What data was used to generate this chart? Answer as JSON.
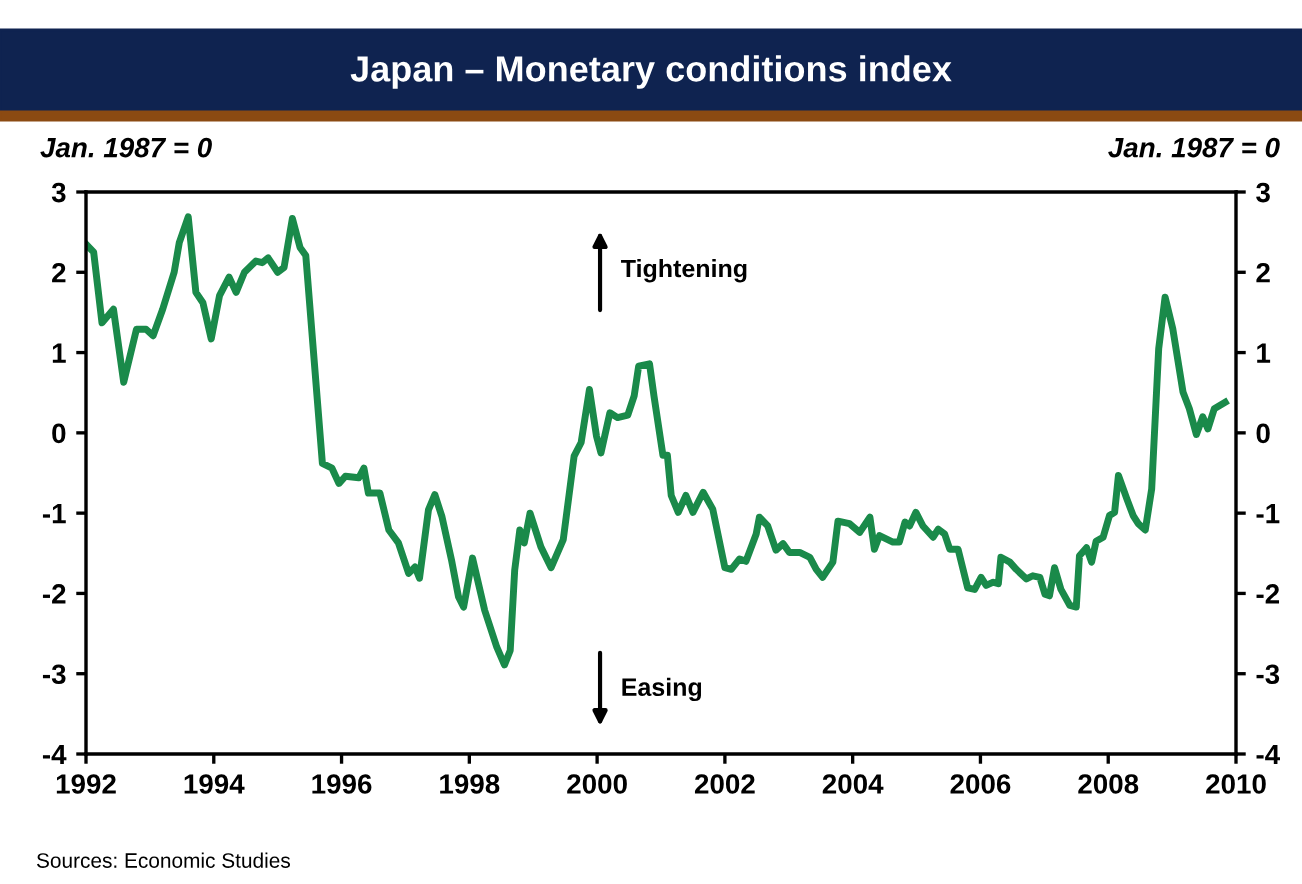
{
  "chart_data": {
    "type": "line",
    "title": "Japan – Monetary conditions index",
    "ylabel": "Jan. 1987 = 0",
    "y2label": "Jan. 1987 = 0",
    "annotations": [
      "Tightening",
      "Easing",
      "Sources: Economic Studies"
    ],
    "series": [
      {
        "color": "#1a8a4a",
        "x": [
          1992.0,
          1992.12,
          1992.25,
          1992.43,
          1992.59,
          1992.79,
          1992.94,
          1993.05,
          1993.2,
          1993.38,
          1993.46,
          1993.6,
          1993.72,
          1993.83,
          1993.96,
          1994.09,
          1994.24,
          1994.35,
          1994.48,
          1994.66,
          1994.76,
          1994.85,
          1995.0,
          1995.1,
          1995.23,
          1995.35,
          1995.44,
          1995.7,
          1995.85,
          1995.96,
          1996.06,
          1996.27,
          1996.35,
          1996.42,
          1996.6,
          1996.74,
          1996.89,
          1997.05,
          1997.15,
          1997.22,
          1997.36,
          1997.46,
          1997.57,
          1997.72,
          1997.83,
          1997.91,
          1998.05,
          1998.24,
          1998.43,
          1998.55,
          1998.64,
          1998.71,
          1998.79,
          1998.86,
          1998.95,
          1999.12,
          1999.28,
          1999.47,
          1999.64,
          1999.75,
          1999.88,
          1999.99,
          2000.06,
          2000.2,
          2000.32,
          2000.48,
          2000.58,
          2000.65,
          2000.82,
          2000.89,
          2001.03,
          2001.1,
          2001.16,
          2001.27,
          2001.39,
          2001.5,
          2001.66,
          2001.81,
          2002.0,
          2002.1,
          2002.23,
          2002.33,
          2002.49,
          2002.54,
          2002.67,
          2002.8,
          2002.91,
          2003.01,
          2003.17,
          2003.33,
          2003.43,
          2003.53,
          2003.69,
          2003.77,
          2003.95,
          2004.11,
          2004.27,
          2004.34,
          2004.42,
          2004.63,
          2004.73,
          2004.82,
          2004.89,
          2004.99,
          2005.1,
          2005.26,
          2005.34,
          2005.44,
          2005.52,
          2005.65,
          2005.8,
          2005.91,
          2006.01,
          2006.09,
          2006.2,
          2006.28,
          2006.32,
          2006.46,
          2006.56,
          2006.72,
          2006.82,
          2006.93,
          2007.01,
          2007.08,
          2007.16,
          2007.26,
          2007.4,
          2007.5,
          2007.55,
          2007.66,
          2007.74,
          2007.81,
          2007.92,
          2008.02,
          2008.1,
          2008.16,
          2008.29,
          2008.39,
          2008.47,
          2008.58,
          2008.68,
          2008.79,
          2008.89,
          2009.01,
          2009.17,
          2009.27,
          2009.38,
          2009.48,
          2009.56,
          2009.66,
          2009.83
        ],
        "values": [
          2.35,
          2.25,
          1.37,
          1.54,
          0.63,
          1.29,
          1.29,
          1.21,
          1.54,
          2.0,
          2.37,
          2.69,
          1.75,
          1.62,
          1.17,
          1.71,
          1.94,
          1.75,
          2.0,
          2.14,
          2.12,
          2.18,
          2.0,
          2.06,
          2.67,
          2.31,
          2.21,
          -0.38,
          -0.44,
          -0.63,
          -0.54,
          -0.56,
          -0.44,
          -0.75,
          -0.75,
          -1.21,
          -1.37,
          -1.75,
          -1.67,
          -1.81,
          -0.96,
          -0.77,
          -1.04,
          -1.58,
          -2.04,
          -2.17,
          -1.56,
          -2.21,
          -2.67,
          -2.89,
          -2.71,
          -1.71,
          -1.21,
          -1.37,
          -1.0,
          -1.42,
          -1.68,
          -1.33,
          -0.29,
          -0.12,
          0.54,
          -0.04,
          -0.25,
          0.25,
          0.19,
          0.22,
          0.46,
          0.83,
          0.86,
          0.46,
          -0.28,
          -0.28,
          -0.78,
          -0.99,
          -0.78,
          -0.99,
          -0.74,
          -0.95,
          -1.68,
          -1.7,
          -1.57,
          -1.6,
          -1.26,
          -1.05,
          -1.16,
          -1.46,
          -1.38,
          -1.49,
          -1.49,
          -1.55,
          -1.7,
          -1.8,
          -1.61,
          -1.1,
          -1.13,
          -1.24,
          -1.05,
          -1.45,
          -1.28,
          -1.36,
          -1.36,
          -1.11,
          -1.16,
          -0.99,
          -1.16,
          -1.3,
          -1.2,
          -1.26,
          -1.45,
          -1.45,
          -1.93,
          -1.95,
          -1.8,
          -1.9,
          -1.86,
          -1.88,
          -1.55,
          -1.61,
          -1.7,
          -1.82,
          -1.78,
          -1.8,
          -2.01,
          -2.03,
          -1.68,
          -1.95,
          -2.15,
          -2.17,
          -1.53,
          -1.43,
          -1.61,
          -1.35,
          -1.3,
          -1.03,
          -0.99,
          -0.53,
          -0.82,
          -1.03,
          -1.13,
          -1.21,
          -0.7,
          1.05,
          1.69,
          1.3,
          0.51,
          0.3,
          -0.02,
          0.2,
          0.05,
          0.3,
          0.38
        ]
      }
    ],
    "xlim": [
      1992,
      2010
    ],
    "xticks": [
      1992,
      1994,
      1996,
      1998,
      2000,
      2002,
      2004,
      2006,
      2008,
      2010
    ],
    "ylim": [
      -4,
      3
    ],
    "yticks": [
      -4,
      -3,
      -2,
      -1,
      0,
      1,
      2,
      3
    ],
    "y2lim": [
      -4,
      3
    ],
    "y2ticks": [
      -4,
      -3,
      -2,
      -1,
      0,
      1,
      2,
      3
    ],
    "grid": false,
    "legend": false
  }
}
